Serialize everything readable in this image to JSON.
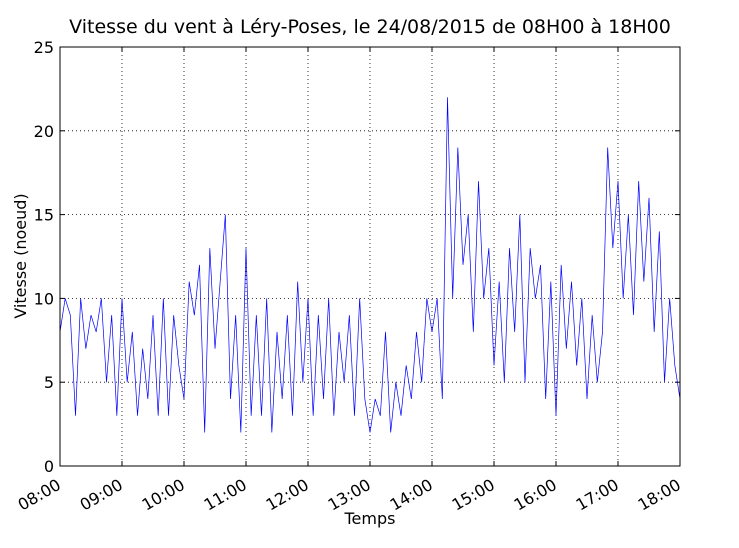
{
  "chart_data": {
    "type": "line",
    "title": "Vitesse du vent à Léry-Poses, le 24/08/2015 de 08H00 à 18H00",
    "xlabel": "Temps",
    "ylabel": "Vitesse (noeud)",
    "x": [
      "08:00",
      "08:05",
      "08:10",
      "08:15",
      "08:20",
      "08:25",
      "08:30",
      "08:35",
      "08:40",
      "08:45",
      "08:50",
      "08:55",
      "09:00",
      "09:05",
      "09:10",
      "09:15",
      "09:20",
      "09:25",
      "09:30",
      "09:35",
      "09:40",
      "09:45",
      "09:50",
      "09:55",
      "10:00",
      "10:05",
      "10:10",
      "10:15",
      "10:20",
      "10:25",
      "10:30",
      "10:35",
      "10:40",
      "10:45",
      "10:50",
      "10:55",
      "11:00",
      "11:05",
      "11:10",
      "11:15",
      "11:20",
      "11:25",
      "11:30",
      "11:35",
      "11:40",
      "11:45",
      "11:50",
      "11:55",
      "12:00",
      "12:05",
      "12:10",
      "12:15",
      "12:20",
      "12:25",
      "12:30",
      "12:35",
      "12:40",
      "12:45",
      "12:50",
      "12:55",
      "13:00",
      "13:05",
      "13:10",
      "13:15",
      "13:20",
      "13:25",
      "13:30",
      "13:35",
      "13:40",
      "13:45",
      "13:50",
      "13:55",
      "14:00",
      "14:05",
      "14:10",
      "14:15",
      "14:20",
      "14:25",
      "14:30",
      "14:35",
      "14:40",
      "14:45",
      "14:50",
      "14:55",
      "15:00",
      "15:05",
      "15:10",
      "15:15",
      "15:20",
      "15:25",
      "15:30",
      "15:35",
      "15:40",
      "15:45",
      "15:50",
      "15:55",
      "16:00",
      "16:05",
      "16:10",
      "16:15",
      "16:20",
      "16:25",
      "16:30",
      "16:35",
      "16:40",
      "16:45",
      "16:50",
      "16:55",
      "17:00",
      "17:05",
      "17:10",
      "17:15",
      "17:20",
      "17:25",
      "17:30",
      "17:35",
      "17:40",
      "17:45",
      "17:50",
      "17:55",
      "18:00"
    ],
    "series": [
      {
        "color": "#0000ff",
        "values": [
          8,
          10,
          9,
          3,
          10,
          7,
          9,
          8,
          10,
          5,
          9,
          3,
          10,
          5,
          8,
          3,
          7,
          4,
          9,
          3,
          10,
          3,
          9,
          6,
          4,
          11,
          9,
          12,
          2,
          13,
          7,
          11,
          15,
          4,
          9,
          2,
          13,
          3,
          9,
          3,
          10,
          2,
          8,
          4,
          9,
          3,
          11,
          5,
          10,
          3,
          9,
          4,
          10,
          3,
          8,
          5,
          9,
          3,
          10,
          4,
          2,
          4,
          3,
          8,
          2,
          5,
          3,
          6,
          4,
          8,
          5,
          10,
          8,
          10,
          4,
          22,
          10,
          19,
          12,
          15,
          8,
          17,
          10,
          13,
          6,
          11,
          5,
          13,
          8,
          15,
          5,
          13,
          10,
          12,
          4,
          11,
          3,
          12,
          7,
          11,
          6,
          10,
          4,
          9,
          5,
          8,
          19,
          13,
          17,
          10,
          15,
          9,
          17,
          11,
          16,
          8,
          14,
          5,
          10,
          6,
          4
        ]
      }
    ],
    "xlim": [
      "08:00",
      "18:00"
    ],
    "xticks": [
      "08:00",
      "09:00",
      "10:00",
      "11:00",
      "12:00",
      "13:00",
      "14:00",
      "15:00",
      "16:00",
      "17:00",
      "18:00"
    ],
    "ylim": [
      0,
      25
    ],
    "yticks": [
      0,
      5,
      10,
      15,
      20,
      25
    ],
    "grid": true
  }
}
